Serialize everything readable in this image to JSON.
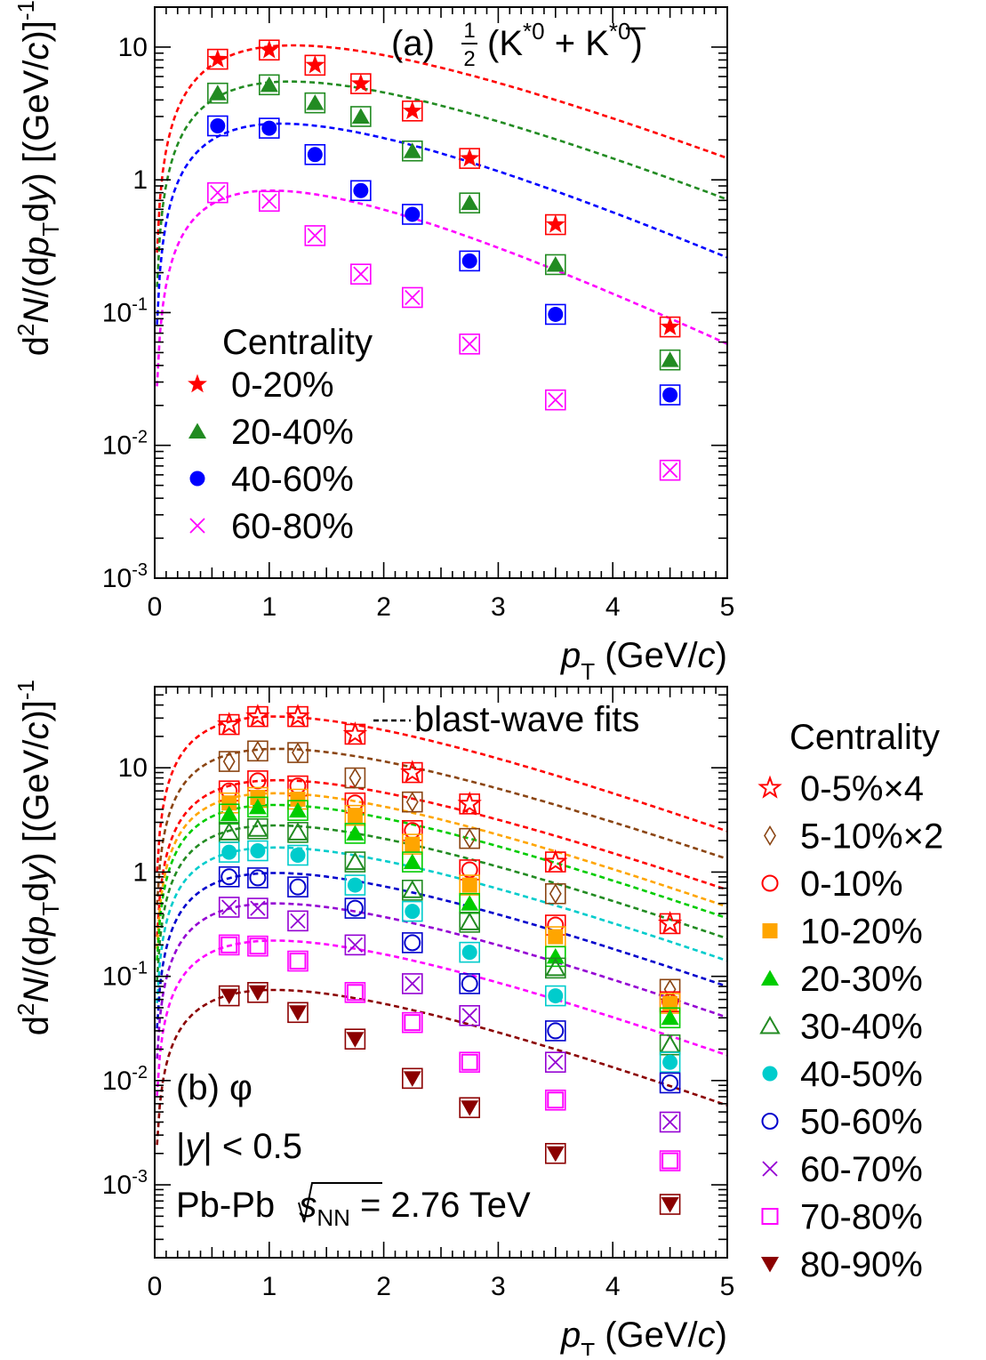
{
  "chart_data": [
    {
      "type": "scatter",
      "panel": "(a)",
      "particle_parts": {
        "label": "(a)",
        "half": "1/2",
        "k": "K",
        "star0": "*0",
        "plus": "+"
      },
      "ylabel": {
        "pre": "d",
        "sup2": "2",
        "N": "N",
        "mid": "/(d",
        "p": "p",
        "sub": "T",
        "dy": "d",
        "y": "y",
        "post": ") [(GeV/",
        "c": "c",
        "close": ")]",
        "sup": "-1"
      },
      "xlabel": {
        "p": "p",
        "sub": "T",
        "rest": " (GeV/",
        "c": "c",
        "close": ")"
      },
      "x_ticks": [
        "0",
        "1",
        "2",
        "3",
        "4",
        "5"
      ],
      "y_ticks": [
        {
          "base": "10",
          "exp": "-3"
        },
        {
          "base": "10",
          "exp": "-2"
        },
        {
          "base": "10",
          "exp": "-1"
        },
        {
          "base": "1",
          "exp": ""
        },
        {
          "base": "10",
          "exp": ""
        }
      ],
      "xlim": [
        0,
        5
      ],
      "ylim": [
        0.001,
        20
      ],
      "yscale": "log",
      "legend_title": "Centrality",
      "legend_position": "left",
      "series": [
        {
          "name": "0-20%",
          "color": "#ff0000",
          "marker": "star-filled",
          "x": [
            0.55,
            1.0,
            1.4,
            1.8,
            2.25,
            2.75,
            3.5,
            4.5
          ],
          "y": [
            8.1,
            9.5,
            7.3,
            5.3,
            3.3,
            1.45,
            0.46,
            0.078
          ],
          "fit": {
            "a": 10.3,
            "T": 0.54,
            "g": 2.25
          }
        },
        {
          "name": "20-40%",
          "color": "#228b22",
          "marker": "triangle-filled",
          "x": [
            0.55,
            1.0,
            1.4,
            1.8,
            2.25,
            2.75,
            3.5,
            4.5
          ],
          "y": [
            4.5,
            5.2,
            3.8,
            3.0,
            1.65,
            0.67,
            0.23,
            0.044
          ],
          "fit": {
            "a": 5.5,
            "T": 0.52,
            "g": 2.28
          }
        },
        {
          "name": "40-60%",
          "color": "#0000ff",
          "marker": "circle-filled",
          "x": [
            0.55,
            1.0,
            1.4,
            1.8,
            2.25,
            2.75,
            3.5,
            4.5
          ],
          "y": [
            2.55,
            2.45,
            1.55,
            0.83,
            0.55,
            0.245,
            0.097,
            0.024
          ],
          "fit": {
            "a": 2.65,
            "T": 0.46,
            "g": 2.4
          }
        },
        {
          "name": "60-80%",
          "color": "#ff00ff",
          "marker": "cross",
          "x": [
            0.55,
            1.0,
            1.4,
            1.8,
            2.25,
            2.75,
            3.5,
            4.5
          ],
          "y": [
            0.8,
            0.69,
            0.38,
            0.195,
            0.13,
            0.058,
            0.022,
            0.0065
          ],
          "fit": {
            "a": 0.83,
            "T": 0.4,
            "g": 2.55
          }
        }
      ]
    },
    {
      "type": "scatter",
      "panel": "(b)",
      "particle_parts": {
        "label": "(b)",
        "phi": "φ"
      },
      "rapidity": {
        "pre": "|",
        "y": "y",
        "post": "| < 0.5"
      },
      "system": {
        "pre": "Pb-Pb",
        "s": "s",
        "nn": "NN",
        "eq": "= 2.76 TeV"
      },
      "fit_legend": "blast-wave fits",
      "ylabel": {
        "pre": "d",
        "sup2": "2",
        "N": "N",
        "mid": "/(d",
        "p": "p",
        "sub": "T",
        "dy": "d",
        "y": "y",
        "post": ") [(GeV/",
        "c": "c",
        "close": ")]",
        "sup": "-1"
      },
      "xlabel": {
        "p": "p",
        "sub": "T",
        "rest": " (GeV/",
        "c": "c",
        "close": ")"
      },
      "x_ticks": [
        "0",
        "1",
        "2",
        "3",
        "4",
        "5"
      ],
      "y_ticks": [
        {
          "base": "10",
          "exp": "-3"
        },
        {
          "base": "10",
          "exp": "-2"
        },
        {
          "base": "10",
          "exp": "-1"
        },
        {
          "base": "1",
          "exp": ""
        },
        {
          "base": "10",
          "exp": ""
        }
      ],
      "xlim": [
        0,
        5
      ],
      "ylim": [
        0.0002,
        60
      ],
      "yscale": "log",
      "legend_title": "Centrality",
      "legend_position": "right",
      "series": [
        {
          "name": "0-5%",
          "scale": "×4",
          "color": "#ff0000",
          "marker": "star-open",
          "x": [
            0.65,
            0.9,
            1.25,
            1.75,
            2.25,
            2.75,
            3.5,
            4.5
          ],
          "y": [
            26,
            31,
            31,
            21,
            9.0,
            4.5,
            1.25,
            0.32
          ],
          "fit": {
            "a": 31.0,
            "T": 0.5,
            "g": 2.1
          }
        },
        {
          "name": "5-10%",
          "scale": "×2",
          "color": "#8b4513",
          "marker": "diamond-open",
          "x": [
            0.65,
            0.9,
            1.25,
            1.75,
            2.25,
            2.75,
            3.5,
            4.5
          ],
          "y": [
            11.5,
            14.5,
            14.0,
            8.0,
            4.7,
            2.1,
            0.62,
            0.075
          ],
          "fit": {
            "a": 15.2,
            "T": 0.5,
            "g": 2.15
          }
        },
        {
          "name": "0-10%",
          "color": "#ff0000",
          "marker": "circle-open",
          "x": [
            0.65,
            0.9,
            1.25,
            1.75,
            2.25,
            2.75,
            3.5,
            4.5
          ],
          "y": [
            6.0,
            7.5,
            6.7,
            4.6,
            2.5,
            1.05,
            0.31,
            0.057
          ],
          "fit": {
            "a": 7.6,
            "T": 0.49,
            "g": 2.2
          }
        },
        {
          "name": "10-20%",
          "color": "#ffa500",
          "marker": "square-filled",
          "x": [
            0.65,
            0.9,
            1.25,
            1.75,
            2.25,
            2.75,
            3.5,
            4.5
          ],
          "y": [
            4.6,
            5.2,
            5.0,
            3.5,
            1.85,
            0.75,
            0.24,
            0.055
          ],
          "fit": {
            "a": 5.7,
            "T": 0.48,
            "g": 2.2
          }
        },
        {
          "name": "20-30%",
          "color": "#00cc00",
          "marker": "triangle-filled",
          "x": [
            0.65,
            0.9,
            1.25,
            1.75,
            2.25,
            2.75,
            3.5,
            4.5
          ],
          "y": [
            3.6,
            4.2,
            3.9,
            2.35,
            1.25,
            0.5,
            0.155,
            0.04
          ],
          "fit": {
            "a": 4.4,
            "T": 0.47,
            "g": 2.25
          }
        },
        {
          "name": "30-40%",
          "color": "#228b22",
          "marker": "triangle-open",
          "x": [
            0.65,
            0.9,
            1.25,
            1.75,
            2.25,
            2.75,
            3.5,
            4.5
          ],
          "y": [
            2.4,
            2.6,
            2.4,
            1.25,
            0.67,
            0.33,
            0.12,
            0.022
          ],
          "fit": {
            "a": 2.8,
            "T": 0.46,
            "g": 2.3
          }
        },
        {
          "name": "40-50%",
          "color": "#00cccc",
          "marker": "circle-filled",
          "x": [
            0.65,
            0.9,
            1.25,
            1.75,
            2.25,
            2.75,
            3.5,
            4.5
          ],
          "y": [
            1.55,
            1.6,
            1.45,
            0.75,
            0.42,
            0.17,
            0.065,
            0.015
          ],
          "fit": {
            "a": 1.72,
            "T": 0.45,
            "g": 2.35
          }
        },
        {
          "name": "50-60%",
          "color": "#0000cc",
          "marker": "circle-open",
          "x": [
            0.65,
            0.9,
            1.25,
            1.75,
            2.25,
            2.75,
            3.5,
            4.5
          ],
          "y": [
            0.9,
            0.88,
            0.72,
            0.45,
            0.21,
            0.085,
            0.03,
            0.0095
          ],
          "fit": {
            "a": 0.98,
            "T": 0.44,
            "g": 2.4
          }
        },
        {
          "name": "60-70%",
          "color": "#9400d3",
          "marker": "cross",
          "x": [
            0.65,
            0.9,
            1.25,
            1.75,
            2.25,
            2.75,
            3.5,
            4.5
          ],
          "y": [
            0.46,
            0.45,
            0.34,
            0.2,
            0.085,
            0.042,
            0.015,
            0.004
          ],
          "fit": {
            "a": 0.5,
            "T": 0.43,
            "g": 2.45
          }
        },
        {
          "name": "70-80%",
          "color": "#ff00ff",
          "marker": "square-open",
          "x": [
            0.65,
            0.9,
            1.25,
            1.75,
            2.25,
            2.75,
            3.5,
            4.5
          ],
          "y": [
            0.2,
            0.195,
            0.14,
            0.07,
            0.036,
            0.015,
            0.0065,
            0.0017
          ],
          "fit": {
            "a": 0.22,
            "T": 0.42,
            "g": 2.5
          }
        },
        {
          "name": "80-90%",
          "color": "#8b0000",
          "marker": "triangle-down-filled",
          "x": [
            0.65,
            0.9,
            1.25,
            1.75,
            2.25,
            2.75,
            3.5,
            4.5
          ],
          "y": [
            0.065,
            0.07,
            0.045,
            0.025,
            0.0105,
            0.0055,
            0.002,
            0.00065
          ],
          "fit": {
            "a": 0.074,
            "T": 0.41,
            "g": 2.55
          }
        }
      ]
    }
  ]
}
